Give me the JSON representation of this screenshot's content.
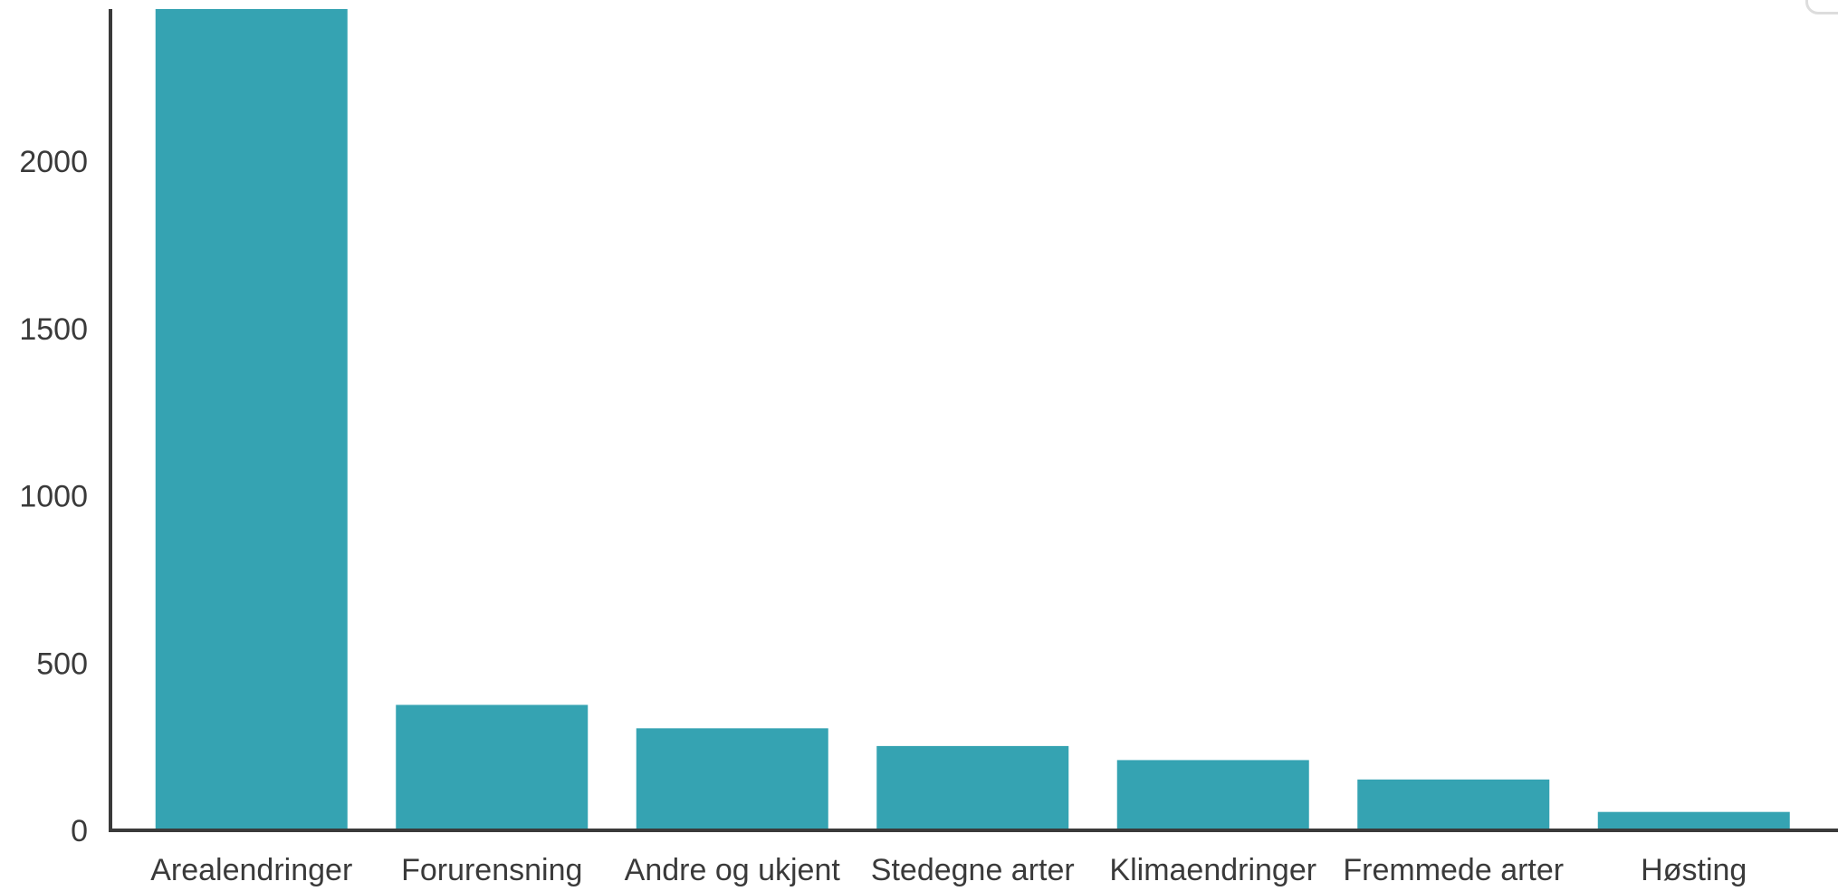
{
  "colors": {
    "bar": "#35a3b2",
    "axis": "#3a3a3a",
    "text": "#3a3a3a",
    "background": "#ffffff"
  },
  "chart_data": {
    "type": "bar",
    "title": "",
    "xlabel": "",
    "ylabel": "",
    "categories": [
      "Arealendringer",
      "Forurensning",
      "Andre og ukjent",
      "Stedegne arter",
      "Klimaendringer",
      "Fremmede arter",
      "Høsting"
    ],
    "values": [
      2455,
      375,
      305,
      252,
      210,
      152,
      55
    ],
    "yticks": [
      0,
      500,
      1000,
      1500,
      2000
    ],
    "ylim": [
      0,
      2455
    ],
    "grid": false,
    "legend": "none"
  }
}
